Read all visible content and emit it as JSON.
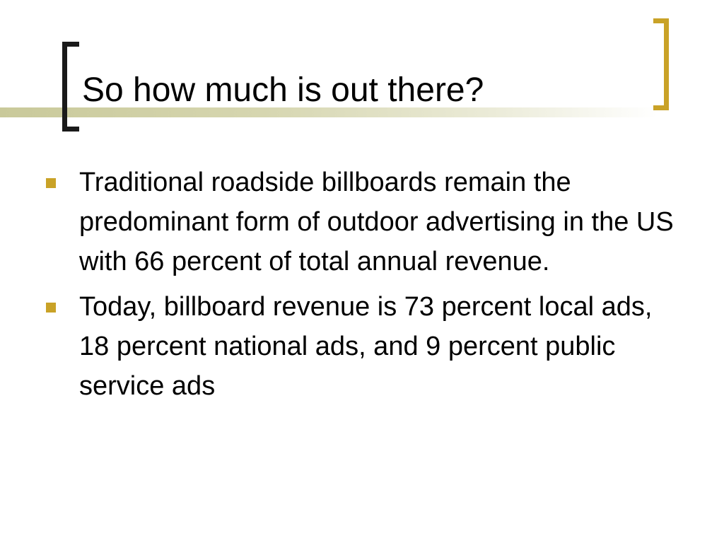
{
  "slide": {
    "title": "So how much is out there?",
    "bullets": [
      {
        "text": "Traditional roadside billboards remain the predominant form of outdoor advertising in the US with 66 percent of total annual revenue."
      },
      {
        "text": "Today, billboard revenue is 73 percent local ads, 18 percent national ads, and 9 percent public service ads"
      }
    ]
  },
  "theme": {
    "accent_color": "#c9a227",
    "bracket_left_color": "#1a1a1a",
    "accent_line_color": "#c9c99a",
    "bullet_icon": "square-bullet-icon"
  }
}
